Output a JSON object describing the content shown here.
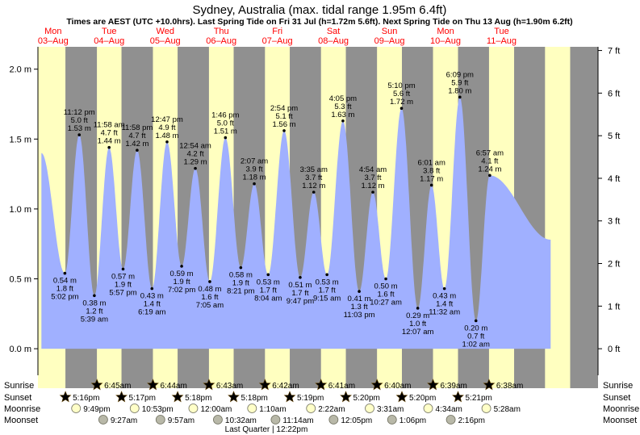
{
  "title": "Sydney, Australia (max. tidal range 1.95m 6.4ft)",
  "subtitle": "Times are AEST (UTC +10.0hrs). Last Spring Tide on Fri 31 Jul (h=1.72m 5.6ft). Next Spring Tide on Thu 13 Aug (h=1.90m 6.2ft)",
  "colors": {
    "day": "#ffffc0",
    "night": "#909090",
    "water": "#a0b0ff",
    "date_text": "#ff0000",
    "sun_star": "#c8a000",
    "sunset_star": "#a05010",
    "moonrise": "#ffffc8",
    "moonset": "#b8b8a8"
  },
  "chart_data": {
    "type": "area",
    "x_unit": "hours",
    "xlim_hours": [
      -18.5,
      221.3
    ],
    "ylim_m": [
      -0.19,
      2.16
    ],
    "left_axis": {
      "ticks": [
        0.0,
        0.5,
        1.0,
        1.5,
        2.0
      ],
      "labels": [
        "0.0 m",
        "0.5 m",
        "1.0 m",
        "1.5 m",
        "2.0 m"
      ]
    },
    "right_axis": {
      "ticks": [
        0,
        1,
        2,
        3,
        4,
        5,
        6,
        7
      ],
      "labels": [
        "0 ft",
        "1 ft",
        "2 ft",
        "3 ft",
        "4 ft",
        "5 ft",
        "6 ft",
        "7 ft"
      ]
    },
    "days": [
      {
        "dow": "Mon",
        "date": "03–Aug",
        "hour": -12
      },
      {
        "dow": "Tue",
        "date": "04–Aug",
        "hour": 12
      },
      {
        "dow": "Wed",
        "date": "05–Aug",
        "hour": 36
      },
      {
        "dow": "Thu",
        "date": "06–Aug",
        "hour": 60
      },
      {
        "dow": "Fri",
        "date": "07–Aug",
        "hour": 84
      },
      {
        "dow": "Sat",
        "date": "08–Aug",
        "hour": 108
      },
      {
        "dow": "Sun",
        "date": "09–Aug",
        "hour": 132
      },
      {
        "dow": "Mon",
        "date": "10–Aug",
        "hour": 156
      },
      {
        "dow": "Tue",
        "date": "11–Aug",
        "hour": 180
      }
    ],
    "series_start": {
      "hour": -17.0,
      "m": 1.4
    },
    "series_end": {
      "hour": 201.0,
      "m": 0.78
    },
    "tides": [
      {
        "hour": -6.97,
        "m": 0.54,
        "ft": "1.8 ft",
        "time": "5:02 pm",
        "type": "low"
      },
      {
        "hour": -0.8,
        "m": 1.53,
        "ft": "5.0 ft",
        "time": "11:12 pm",
        "type": "high"
      },
      {
        "hour": 5.65,
        "m": 0.38,
        "ft": "1.2 ft",
        "time": "5:39 am",
        "type": "low"
      },
      {
        "hour": 11.97,
        "m": 1.44,
        "ft": "4.7 ft",
        "time": "11:58 am",
        "type": "high"
      },
      {
        "hour": 17.95,
        "m": 0.57,
        "ft": "1.9 ft",
        "time": "5:57 pm",
        "type": "low"
      },
      {
        "hour": 23.97,
        "m": 1.42,
        "ft": "4.7 ft",
        "time": "11:58 pm",
        "type": "high"
      },
      {
        "hour": 30.32,
        "m": 0.43,
        "ft": "1.4 ft",
        "time": "6:19 am",
        "type": "low"
      },
      {
        "hour": 36.78,
        "m": 1.48,
        "ft": "4.9 ft",
        "time": "12:47 pm",
        "type": "high"
      },
      {
        "hour": 43.03,
        "m": 0.59,
        "ft": "1.9 ft",
        "time": "7:02 pm",
        "type": "low"
      },
      {
        "hour": 48.9,
        "m": 1.29,
        "ft": "4.2 ft",
        "time": "12:54 am",
        "type": "high"
      },
      {
        "hour": 55.08,
        "m": 0.48,
        "ft": "1.6 ft",
        "time": "7:05 am",
        "type": "low"
      },
      {
        "hour": 61.77,
        "m": 1.51,
        "ft": "5.0 ft",
        "time": "1:46 pm",
        "type": "high"
      },
      {
        "hour": 68.35,
        "m": 0.58,
        "ft": "1.9 ft",
        "time": "8:21 pm",
        "type": "low"
      },
      {
        "hour": 74.12,
        "m": 1.18,
        "ft": "3.9 ft",
        "time": "2:07 am",
        "type": "high"
      },
      {
        "hour": 80.07,
        "m": 0.53,
        "ft": "1.7 ft",
        "time": "8:04 am",
        "type": "low"
      },
      {
        "hour": 86.9,
        "m": 1.56,
        "ft": "5.1 ft",
        "time": "2:54 pm",
        "type": "high"
      },
      {
        "hour": 93.78,
        "m": 0.51,
        "ft": "1.7 ft",
        "time": "9:47 pm",
        "type": "low"
      },
      {
        "hour": 99.58,
        "m": 1.12,
        "ft": "3.7 ft",
        "time": "3:35 am",
        "type": "high"
      },
      {
        "hour": 105.25,
        "m": 0.53,
        "ft": "1.7 ft",
        "time": "9:15 am",
        "type": "low"
      },
      {
        "hour": 112.08,
        "m": 1.63,
        "ft": "5.3 ft",
        "time": "4:05 pm",
        "type": "high"
      },
      {
        "hour": 119.05,
        "m": 0.41,
        "ft": "1.3 ft",
        "time": "11:03 pm",
        "type": "low"
      },
      {
        "hour": 124.9,
        "m": 1.12,
        "ft": "3.7 ft",
        "time": "4:54 am",
        "type": "high"
      },
      {
        "hour": 130.45,
        "m": 0.5,
        "ft": "1.6 ft",
        "time": "10:27 am",
        "type": "low"
      },
      {
        "hour": 137.17,
        "m": 1.72,
        "ft": "5.6 ft",
        "time": "5:10 pm",
        "type": "high"
      },
      {
        "hour": 144.12,
        "m": 0.29,
        "ft": "1.0 ft",
        "time": "12:07 am",
        "type": "low"
      },
      {
        "hour": 150.02,
        "m": 1.17,
        "ft": "3.8 ft",
        "time": "6:01 am",
        "type": "high"
      },
      {
        "hour": 155.53,
        "m": 0.43,
        "ft": "1.4 ft",
        "time": "11:32 am",
        "type": "low"
      },
      {
        "hour": 162.15,
        "m": 1.8,
        "ft": "5.9 ft",
        "time": "6:09 pm",
        "type": "high"
      },
      {
        "hour": 169.03,
        "m": 0.2,
        "ft": "0.7 ft",
        "time": "1:02 am",
        "type": "low"
      },
      {
        "hour": 174.95,
        "m": 1.24,
        "ft": "4.1 ft",
        "time": "6:57 am",
        "type": "high"
      }
    ],
    "nights": [
      {
        "start": -6.73,
        "end": 6.75
      },
      {
        "start": 17.28,
        "end": 30.73
      },
      {
        "start": 41.3,
        "end": 54.72
      },
      {
        "start": 65.3,
        "end": 78.7
      },
      {
        "start": 89.32,
        "end": 102.68
      },
      {
        "start": 113.33,
        "end": 126.67
      },
      {
        "start": 137.33,
        "end": 150.65
      },
      {
        "start": 161.35,
        "end": 174.63
      },
      {
        "start": 185.37,
        "end": 198.6
      },
      {
        "start": 209.37,
        "end": 240
      }
    ]
  },
  "almanac": {
    "row_labels": [
      "Sunrise",
      "Sunset",
      "Moonrise",
      "Moonset"
    ],
    "sunrise": [
      {
        "hour": 6.75,
        "label": "6:45am"
      },
      {
        "hour": 30.73,
        "label": "6:44am"
      },
      {
        "hour": 54.72,
        "label": "6:43am"
      },
      {
        "hour": 78.7,
        "label": "6:42am"
      },
      {
        "hour": 102.68,
        "label": "6:41am"
      },
      {
        "hour": 126.67,
        "label": "6:40am"
      },
      {
        "hour": 150.65,
        "label": "6:39am"
      },
      {
        "hour": 174.63,
        "label": "6:38am"
      }
    ],
    "sunset": [
      {
        "hour": -6.73,
        "label": "5:16pm"
      },
      {
        "hour": 17.28,
        "label": "5:17pm"
      },
      {
        "hour": 41.3,
        "label": "5:18pm"
      },
      {
        "hour": 65.3,
        "label": "5:18pm"
      },
      {
        "hour": 89.32,
        "label": "5:19pm"
      },
      {
        "hour": 113.33,
        "label": "5:20pm"
      },
      {
        "hour": 137.33,
        "label": "5:20pm"
      },
      {
        "hour": 161.35,
        "label": "5:21pm"
      }
    ],
    "moonrise": [
      {
        "hour": -2.18,
        "label": "9:49pm"
      },
      {
        "hour": 22.88,
        "label": "10:53pm"
      },
      {
        "hour": 48.0,
        "label": "12:00am"
      },
      {
        "hour": 73.17,
        "label": "1:10am"
      },
      {
        "hour": 98.37,
        "label": "2:22am"
      },
      {
        "hour": 123.52,
        "label": "3:31am"
      },
      {
        "hour": 148.57,
        "label": "4:34am"
      },
      {
        "hour": 173.47,
        "label": "5:28am"
      }
    ],
    "moonset": [
      {
        "hour": 9.45,
        "label": "9:27am"
      },
      {
        "hour": 33.95,
        "label": "9:57am"
      },
      {
        "hour": 58.53,
        "label": "10:32am"
      },
      {
        "hour": 83.23,
        "label": "11:14am"
      },
      {
        "hour": 108.08,
        "label": "12:05pm"
      },
      {
        "hour": 133.1,
        "label": "1:06pm"
      },
      {
        "hour": 158.27,
        "label": "2:16pm"
      }
    ],
    "moon_phase": "Last Quarter | 12:22pm"
  }
}
